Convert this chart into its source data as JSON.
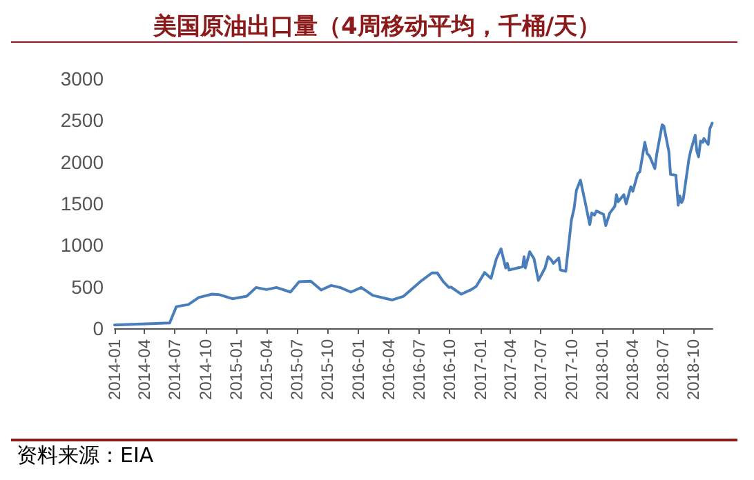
{
  "chart_data": {
    "type": "line",
    "title": "美国原油出口量（4周移动平均，千桶/天）",
    "annotations": [
      "资料来源：EIA"
    ],
    "x": [
      "2014-01-01",
      "2014-06-15",
      "2014-07-05",
      "2014-08-10",
      "2014-09-10",
      "2014-10-20",
      "2014-11-10",
      "2014-12-20",
      "2015-02-01",
      "2015-03-01",
      "2015-04-01",
      "2015-05-01",
      "2015-06-12",
      "2015-07-08",
      "2015-08-12",
      "2015-09-12",
      "2015-10-12",
      "2015-11-08",
      "2015-12-10",
      "2016-01-10",
      "2016-02-14",
      "2016-04-12",
      "2016-05-16",
      "2016-07-05",
      "2016-08-09",
      "2016-08-25",
      "2016-09-12",
      "2016-09-29",
      "2016-10-05",
      "2016-11-05",
      "2016-12-05",
      "2016-12-20",
      "2017-01-14",
      "2017-02-02",
      "2017-02-18",
      "2017-03-04",
      "2017-03-18",
      "2017-03-23",
      "2017-03-28",
      "2017-05-08",
      "2017-05-12",
      "2017-05-16",
      "2017-05-29",
      "2017-06-11",
      "2017-06-24",
      "2017-07-14",
      "2017-07-23",
      "2017-08-01",
      "2017-08-08",
      "2017-08-24",
      "2017-08-29",
      "2017-09-14",
      "2017-10-01",
      "2017-10-09",
      "2017-10-16",
      "2017-10-28",
      "2017-11-11",
      "2017-11-25",
      "2017-12-01",
      "2017-12-09",
      "2017-12-15",
      "2018-01-05",
      "2018-01-12",
      "2018-01-24",
      "2018-02-08",
      "2018-02-13",
      "2018-02-18",
      "2018-03-07",
      "2018-03-14",
      "2018-03-28",
      "2018-04-03",
      "2018-04-18",
      "2018-04-24",
      "2018-05-09",
      "2018-05-16",
      "2018-05-23",
      "2018-06-08",
      "2018-06-14",
      "2018-06-30",
      "2018-07-05",
      "2018-07-20",
      "2018-07-25",
      "2018-08-10",
      "2018-08-17",
      "2018-08-22",
      "2018-08-27",
      "2018-09-01",
      "2018-09-18",
      "2018-09-23",
      "2018-10-07",
      "2018-10-12",
      "2018-10-17",
      "2018-10-23",
      "2018-10-30",
      "2018-11-02",
      "2018-11-15",
      "2018-11-20",
      "2018-11-27"
    ],
    "series": [
      {
        "color": "#4a7ebb",
        "values": [
          40,
          65,
          260,
          285,
          370,
          410,
          405,
          355,
          385,
          490,
          465,
          490,
          435,
          560,
          565,
          460,
          515,
          490,
          435,
          490,
          395,
          340,
          385,
          560,
          665,
          665,
          560,
          490,
          495,
          410,
          465,
          505,
          670,
          600,
          835,
          955,
          725,
          780,
          700,
          740,
          860,
          725,
          920,
          835,
          575,
          725,
          860,
          825,
          780,
          845,
          700,
          685,
          1300,
          1440,
          1660,
          1780,
          1520,
          1245,
          1385,
          1360,
          1410,
          1370,
          1235,
          1385,
          1465,
          1605,
          1520,
          1605,
          1495,
          1700,
          1645,
          1860,
          1880,
          2235,
          2100,
          2070,
          1920,
          2100,
          2445,
          2430,
          2125,
          1850,
          1840,
          1480,
          1590,
          1510,
          1550,
          2030,
          2125,
          2320,
          2125,
          2060,
          2250,
          2235,
          2280,
          2210,
          2400,
          2465
        ]
      }
    ],
    "xlim": [
      "2014-01-01",
      "2018-11-28"
    ],
    "xticks": [
      "2014-01",
      "2014-04",
      "2014-07",
      "2014-10",
      "2015-01",
      "2015-04",
      "2015-07",
      "2015-10",
      "2016-01",
      "2016-04",
      "2016-07",
      "2016-10",
      "2017-01",
      "2017-04",
      "2017-07",
      "2017-10",
      "2018-01",
      "2018-04",
      "2018-07",
      "2018-10"
    ],
    "ylim": [
      0,
      3000
    ],
    "yticks": [
      0,
      500,
      1000,
      1500,
      2000,
      2500,
      3000
    ],
    "grid": false,
    "marker": "none",
    "line_style": "solid"
  }
}
